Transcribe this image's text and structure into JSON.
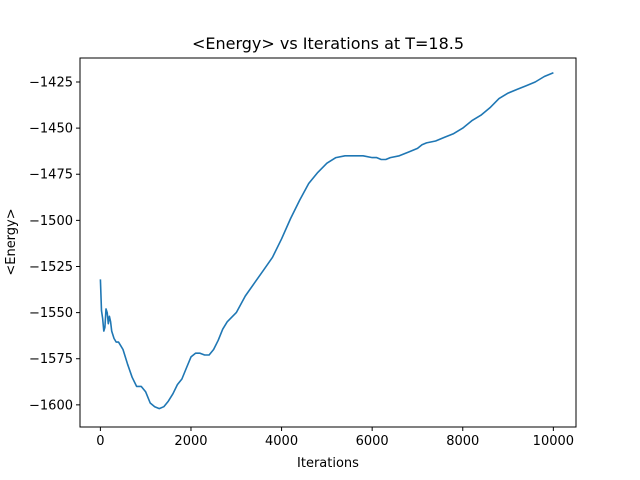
{
  "chart_data": {
    "type": "line",
    "title": "<Energy> vs Iterations at T=18.5",
    "xlabel": "Iterations",
    "ylabel": "<Energy>",
    "xlim": [
      -450,
      10500
    ],
    "ylim": [
      -1612,
      -1412
    ],
    "grid": false,
    "x_ticks": [
      0,
      2000,
      4000,
      6000,
      8000,
      10000
    ],
    "x_tick_labels": [
      "0",
      "2000",
      "4000",
      "6000",
      "8000",
      "10000"
    ],
    "y_ticks": [
      -1425,
      -1450,
      -1475,
      -1500,
      -1525,
      -1550,
      -1575,
      -1600
    ],
    "y_tick_labels": [
      "−1425",
      "−1450",
      "−1475",
      "−1500",
      "−1525",
      "−1550",
      "−1575",
      "−1600"
    ],
    "series": [
      {
        "color": "#1f77b4",
        "x": [
          0,
          25,
          50,
          75,
          100,
          125,
          150,
          175,
          200,
          225,
          250,
          300,
          350,
          400,
          450,
          500,
          600,
          700,
          800,
          900,
          1000,
          1100,
          1200,
          1300,
          1400,
          1500,
          1600,
          1700,
          1800,
          1900,
          2000,
          2100,
          2200,
          2300,
          2400,
          2500,
          2600,
          2700,
          2800,
          3000,
          3200,
          3400,
          3600,
          3800,
          4000,
          4200,
          4400,
          4600,
          4800,
          5000,
          5200,
          5400,
          5600,
          5800,
          6000,
          6100,
          6200,
          6300,
          6400,
          6600,
          6800,
          7000,
          7100,
          7200,
          7400,
          7600,
          7800,
          8000,
          8200,
          8400,
          8600,
          8800,
          9000,
          9200,
          9400,
          9600,
          9800,
          10000
        ],
        "y": [
          -1532,
          -1549,
          -1553,
          -1560,
          -1558,
          -1548,
          -1550,
          -1556,
          -1552,
          -1555,
          -1560,
          -1564,
          -1566,
          -1566,
          -1568,
          -1570,
          -1578,
          -1585,
          -1590,
          -1590,
          -1593,
          -1599,
          -1601,
          -1602,
          -1601,
          -1598,
          -1594,
          -1589,
          -1586,
          -1580,
          -1574,
          -1572,
          -1572,
          -1573,
          -1573,
          -1570,
          -1565,
          -1559,
          -1555,
          -1550,
          -1541,
          -1534,
          -1527,
          -1520,
          -1510,
          -1499,
          -1489,
          -1480,
          -1474,
          -1469,
          -1466,
          -1465,
          -1465,
          -1465,
          -1466,
          -1466,
          -1467,
          -1467,
          -1466,
          -1465,
          -1463,
          -1461,
          -1459,
          -1458,
          -1457,
          -1455,
          -1453,
          -1450,
          -1446,
          -1443,
          -1439,
          -1434,
          -1431,
          -1429,
          -1427,
          -1425,
          -1422,
          -1420
        ]
      }
    ]
  }
}
